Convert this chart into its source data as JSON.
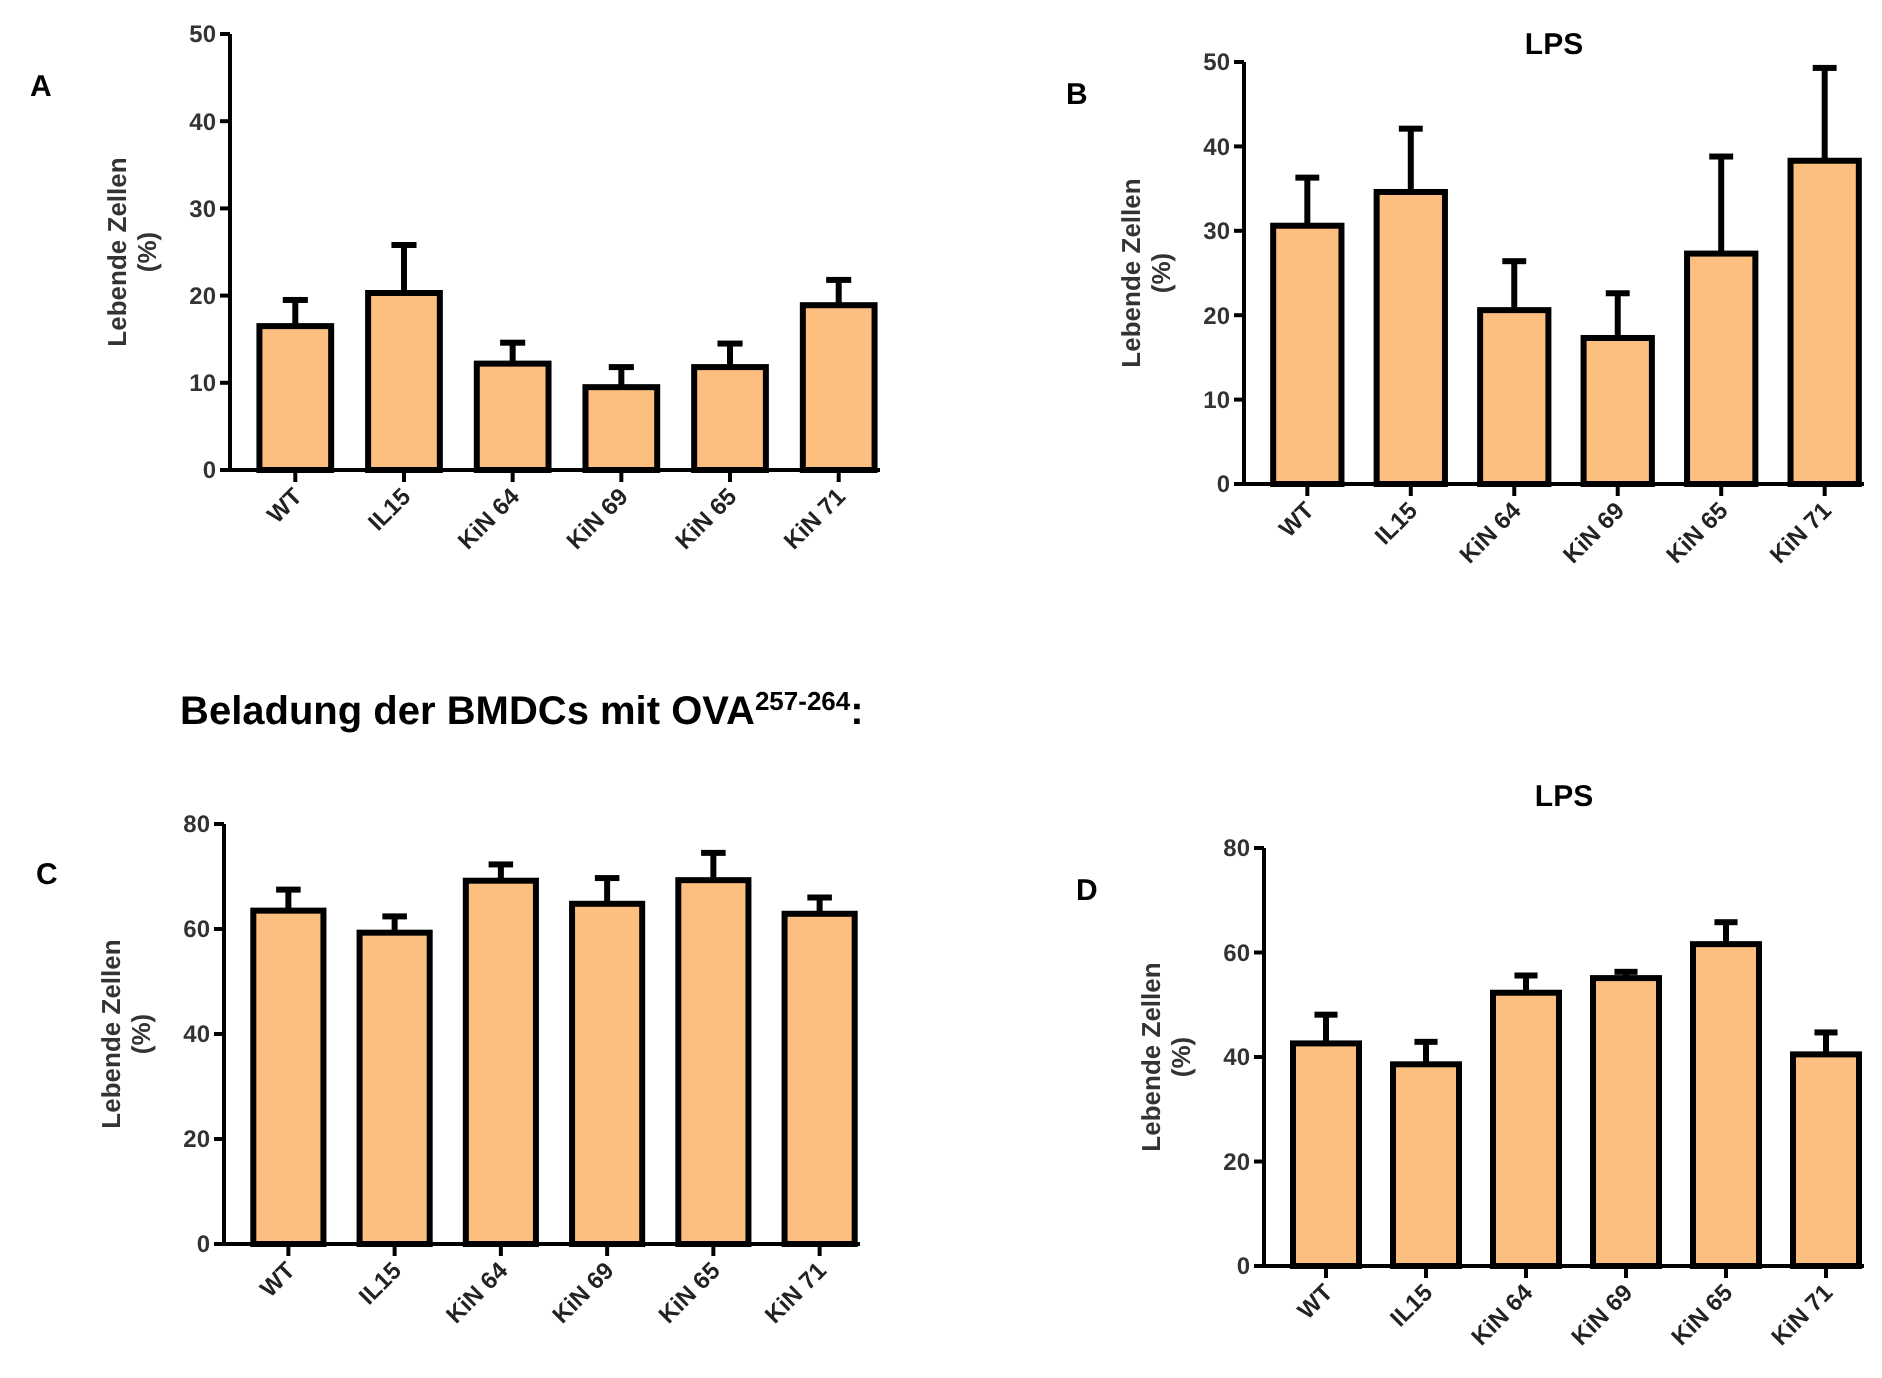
{
  "chart_data": [
    {
      "type": "bar",
      "annotations": [
        "A"
      ],
      "ylabel": "Lebende Zellen (%)",
      "categories": [
        "WT",
        "IL15",
        "KiN 64",
        "KiN 69",
        "KiN 65",
        "KiN 71"
      ],
      "values": [
        16.5,
        20.3,
        12.2,
        9.5,
        11.8,
        18.9
      ],
      "errors": [
        [
          16.5,
          19.5
        ],
        [
          20.3,
          25.8
        ],
        [
          12.2,
          14.6
        ],
        [
          9.5,
          11.8
        ],
        [
          11.8,
          14.5
        ],
        [
          18.9,
          21.8
        ]
      ],
      "color": "#fdbf7f",
      "ylim": [
        0,
        50
      ],
      "yticks": [
        0,
        10,
        20,
        30,
        40,
        50
      ],
      "grid": false
    },
    {
      "type": "bar",
      "title": "LPS",
      "annotations": [
        "B"
      ],
      "ylabel": "Lebende Zellen (%)",
      "categories": [
        "WT",
        "IL15",
        "KiN 64",
        "KiN 69",
        "KiN 65",
        "KiN 71"
      ],
      "values": [
        30.6,
        34.6,
        20.6,
        17.3,
        27.3,
        38.3
      ],
      "errors": [
        [
          30.6,
          36.3
        ],
        [
          34.6,
          42.1
        ],
        [
          20.6,
          26.4
        ],
        [
          17.3,
          22.6
        ],
        [
          27.3,
          38.8
        ],
        [
          38.3,
          49.3
        ]
      ],
      "color": "#fdbf7f",
      "ylim": [
        0,
        50
      ],
      "yticks": [
        0,
        10,
        20,
        30,
        40,
        50
      ],
      "grid": false
    },
    {
      "type": "bar",
      "title": "Beladung der BMDCs mit OVA$^{257-264}$:",
      "annotations": [
        "C"
      ],
      "ylabel": "Lebende Zellen (%)",
      "categories": [
        "WT",
        "IL15",
        "KiN 64",
        "KiN 69",
        "KiN 65",
        "KiN 71"
      ],
      "values": [
        63.5,
        59.3,
        69.2,
        64.8,
        69.3,
        62.9
      ],
      "errors": [
        [
          63.5,
          67.5
        ],
        [
          59.3,
          62.4
        ],
        [
          69.2,
          72.3
        ],
        [
          64.8,
          69.7
        ],
        [
          69.3,
          74.5
        ],
        [
          62.9,
          66.0
        ]
      ],
      "color": "#fdbf7f",
      "ylim": [
        0,
        80
      ],
      "yticks": [
        0,
        20,
        40,
        60,
        80
      ],
      "grid": false
    },
    {
      "type": "bar",
      "title": "LPS",
      "annotations": [
        "D"
      ],
      "ylabel": "Lebende Zellen (%)",
      "categories": [
        "WT",
        "IL15",
        "KiN 64",
        "KiN 69",
        "KiN 65",
        "KiN 71"
      ],
      "values": [
        42.6,
        38.6,
        52.3,
        55.1,
        61.6,
        40.5
      ],
      "errors": [
        [
          42.6,
          48.1
        ],
        [
          38.6,
          42.9
        ],
        [
          52.3,
          55.6
        ],
        [
          55.1,
          56.3
        ],
        [
          61.6,
          65.8
        ],
        [
          40.5,
          44.7
        ]
      ],
      "color": "#fdbf7f",
      "ylim": [
        0,
        80
      ],
      "yticks": [
        0,
        20,
        40,
        60,
        80
      ],
      "grid": false
    }
  ]
}
